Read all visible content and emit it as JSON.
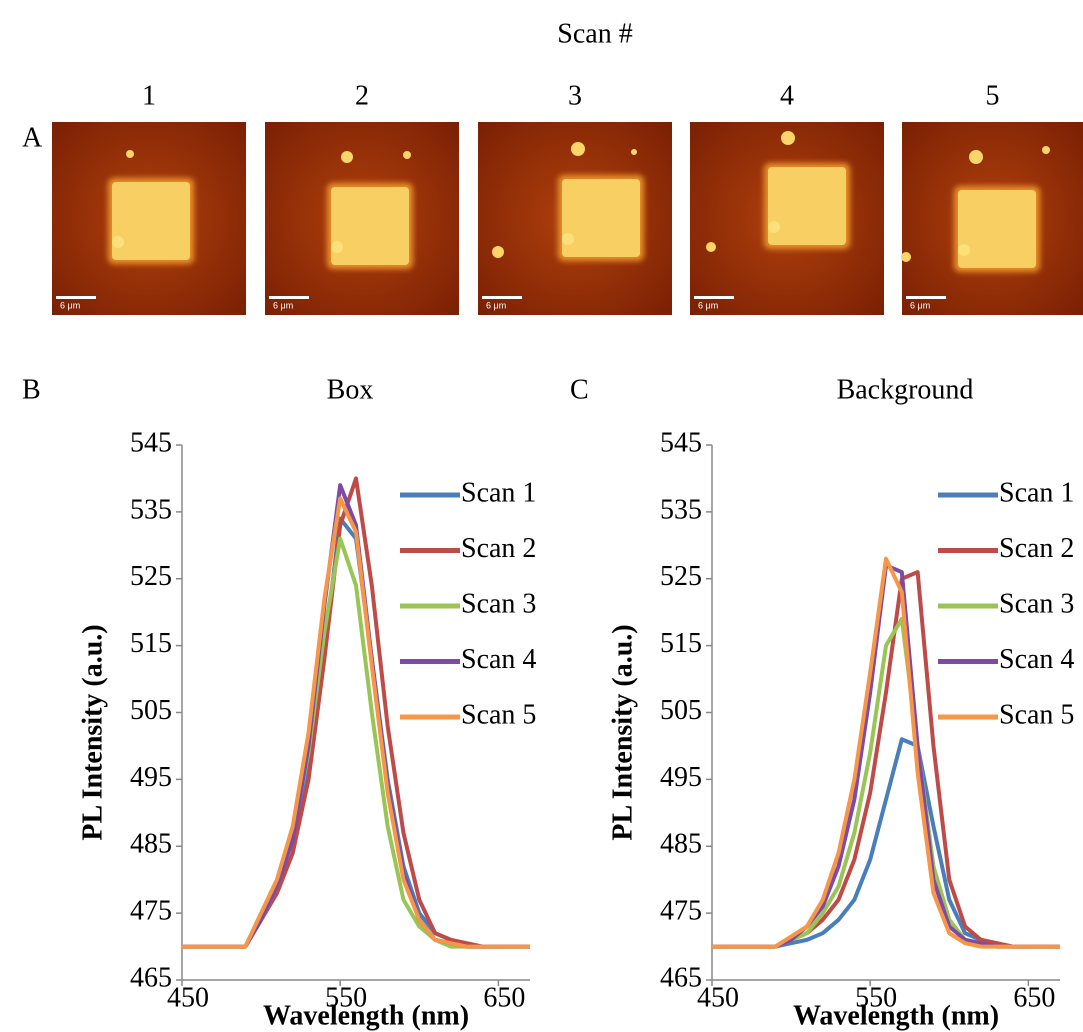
{
  "figure": {
    "title": "Scan #",
    "panel_labels": [
      "A",
      "B",
      "C"
    ],
    "scans": [
      "1",
      "2",
      "3",
      "4",
      "5"
    ],
    "scale_label": "6 μm"
  },
  "chart_data": [
    {
      "type": "line",
      "title": "Box",
      "xlabel": "Wavelength (nm)",
      "ylabel": "PL Intensity (a.u.)",
      "xlim": [
        450,
        670
      ],
      "xticks": [
        450,
        550,
        650
      ],
      "ylim": [
        465,
        545
      ],
      "yticks": [
        465,
        475,
        485,
        495,
        505,
        515,
        525,
        535,
        545
      ],
      "x": [
        450,
        460,
        470,
        480,
        490,
        500,
        510,
        520,
        530,
        540,
        550,
        560,
        570,
        580,
        590,
        600,
        610,
        620,
        630,
        640,
        650,
        660,
        670
      ],
      "series": [
        {
          "name": "Scan 1",
          "color": "#4a7ebb",
          "values": [
            470,
            470,
            470,
            470,
            470,
            474,
            478,
            484,
            496,
            514,
            534,
            531,
            513,
            495,
            482,
            475,
            472,
            471,
            470,
            470,
            470,
            470,
            470
          ]
        },
        {
          "name": "Scan 2",
          "color": "#be4b48",
          "values": [
            470,
            470,
            470,
            470,
            470,
            474,
            478,
            484,
            495,
            513,
            533,
            540,
            524,
            503,
            487,
            477,
            472,
            471,
            470.5,
            470,
            470,
            470,
            470
          ]
        },
        {
          "name": "Scan 3",
          "color": "#98c554",
          "values": [
            470,
            470,
            470,
            470,
            470,
            474,
            479,
            487,
            499,
            517,
            531,
            524,
            505,
            488,
            477,
            473,
            471,
            470,
            470,
            470,
            470,
            470,
            470
          ]
        },
        {
          "name": "Scan 4",
          "color": "#7d4ba6",
          "values": [
            470,
            470,
            470,
            470,
            470,
            474,
            479,
            486,
            500,
            521,
            539,
            533,
            513,
            494,
            481,
            474,
            471,
            470.5,
            470,
            470,
            470,
            470,
            470
          ]
        },
        {
          "name": "Scan 5",
          "color": "#f79646",
          "values": [
            470,
            470,
            470,
            470,
            470,
            475,
            480,
            488,
            502,
            522,
            537,
            532,
            512,
            493,
            480,
            474,
            471,
            470.5,
            470,
            470,
            470,
            470,
            470
          ]
        }
      ]
    },
    {
      "type": "line",
      "title": "Background",
      "xlabel": "Wavelength (nm)",
      "ylabel": "PL Intensity (a.u.)",
      "xlim": [
        450,
        670
      ],
      "xticks": [
        450,
        550,
        650
      ],
      "ylim": [
        465,
        545
      ],
      "yticks": [
        465,
        475,
        485,
        495,
        505,
        515,
        525,
        535,
        545
      ],
      "x": [
        450,
        460,
        470,
        480,
        490,
        500,
        510,
        520,
        530,
        540,
        550,
        560,
        570,
        580,
        590,
        600,
        610,
        620,
        630,
        640,
        650,
        660,
        670
      ],
      "series": [
        {
          "name": "Scan 1",
          "color": "#4a7ebb",
          "values": [
            470,
            470,
            470,
            470,
            470,
            470.5,
            471,
            472,
            474,
            477,
            483,
            492,
            501,
            500,
            488,
            477,
            472,
            471,
            470.5,
            470,
            470,
            470,
            470
          ]
        },
        {
          "name": "Scan 2",
          "color": "#be4b48",
          "values": [
            470,
            470,
            470,
            470,
            470,
            471,
            472,
            474,
            477,
            483,
            493,
            508,
            525,
            526,
            500,
            480,
            473,
            471,
            470.5,
            470,
            470,
            470,
            470
          ]
        },
        {
          "name": "Scan 3",
          "color": "#98c554",
          "values": [
            470,
            470,
            470,
            470,
            470,
            471,
            472,
            475,
            479,
            487,
            499,
            515,
            519,
            500,
            482,
            474,
            471,
            470.5,
            470,
            470,
            470,
            470,
            470
          ]
        },
        {
          "name": "Scan 4",
          "color": "#7d4ba6",
          "values": [
            470,
            470,
            470,
            470,
            470,
            471,
            473,
            476,
            482,
            492,
            508,
            527,
            526,
            500,
            480,
            473,
            471,
            470.5,
            470,
            470,
            470,
            470,
            470
          ]
        },
        {
          "name": "Scan 5",
          "color": "#f79646",
          "values": [
            470,
            470,
            470,
            470,
            470,
            471.5,
            473,
            477,
            484,
            495,
            511,
            528,
            523,
            496,
            478,
            472,
            470.5,
            470,
            470,
            470,
            470,
            470,
            470
          ]
        }
      ]
    }
  ]
}
